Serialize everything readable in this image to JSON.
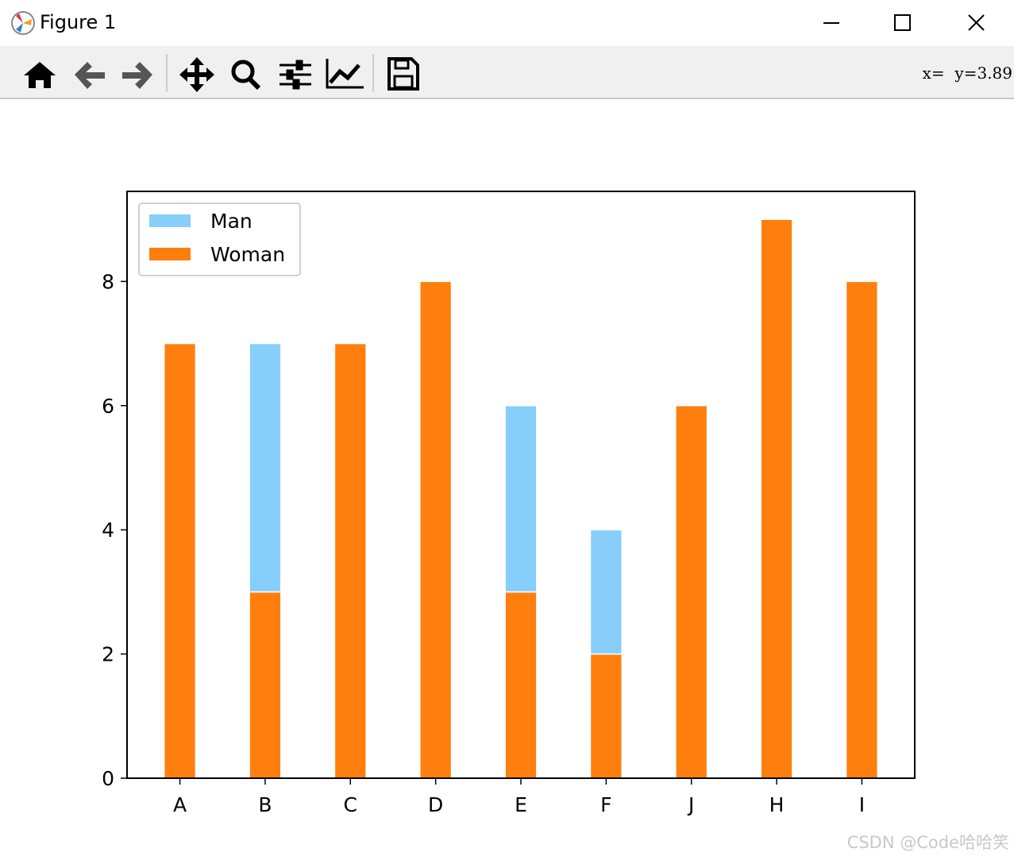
{
  "window": {
    "title": "Figure 1",
    "status": "x=  y=3.89"
  },
  "chart_data": {
    "type": "stacked-bar",
    "categories": [
      "A",
      "B",
      "C",
      "D",
      "E",
      "F",
      "J",
      "H",
      "I"
    ],
    "series": [
      {
        "name": "Woman",
        "color": "#ff7f0e",
        "values": [
          7,
          3,
          7,
          8,
          3,
          2,
          6,
          9,
          8
        ]
      },
      {
        "name": "Man",
        "color": "#87cefa",
        "values": [
          0,
          4,
          0,
          0,
          3,
          2,
          0,
          0,
          0
        ]
      }
    ],
    "legend_order": [
      1,
      0
    ],
    "legend": "upper left",
    "ylim": [
      0,
      9.45
    ],
    "yticks": [
      0,
      2,
      4,
      6,
      8
    ],
    "grid": false
  },
  "watermark": "CSDN @Code哈哈笑"
}
